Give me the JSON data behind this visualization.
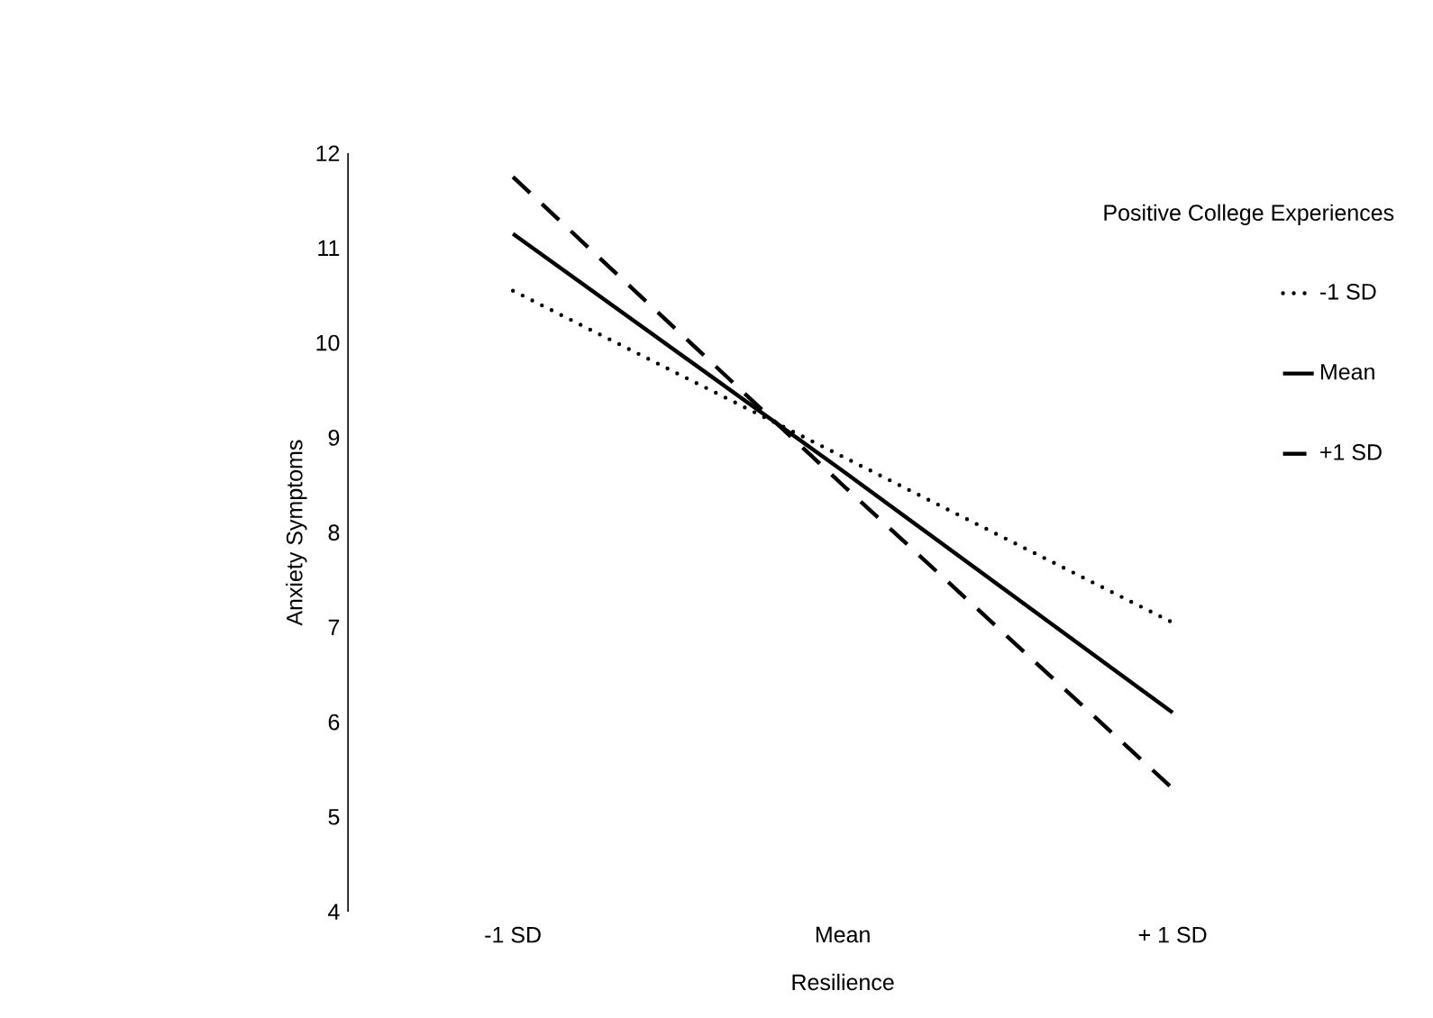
{
  "chart_data": {
    "type": "line",
    "xlabel": "Resilience",
    "ylabel": "Anxiety Symptoms",
    "legend_title": "Positive College Experiences",
    "categories": [
      "-1 SD",
      "Mean",
      "+ 1 SD"
    ],
    "series": [
      {
        "name": "-1 SD",
        "color": "#000000",
        "line_style": "dotted",
        "values": [
          10.55,
          8.8,
          7.05
        ]
      },
      {
        "name": "Mean",
        "color": "#000000",
        "line_style": "solid",
        "values": [
          11.15,
          8.65,
          6.1
        ]
      },
      {
        "name": "+1 SD",
        "color": "#000000",
        "line_style": "dashed",
        "values": [
          11.75,
          8.5,
          5.3
        ]
      }
    ],
    "ylim": [
      4,
      12
    ],
    "yticks": [
      4,
      5,
      6,
      7,
      8,
      9,
      10,
      11,
      12
    ],
    "grid": false,
    "legend": "top right",
    "marker": "none"
  }
}
